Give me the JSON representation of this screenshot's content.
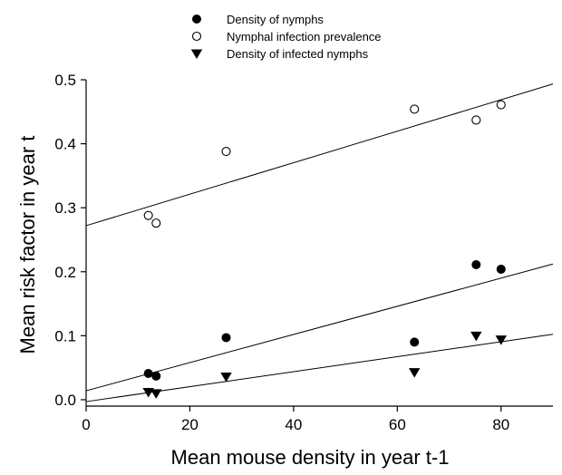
{
  "chart_data": {
    "type": "scatter",
    "title": "",
    "xlabel": "Mean mouse density in year t-1",
    "ylabel": "Mean risk factor in year t",
    "xlim": [
      0,
      90
    ],
    "ylim": [
      -0.01,
      0.5
    ],
    "xticks": [
      0,
      20,
      40,
      60,
      80
    ],
    "yticks": [
      0.0,
      0.1,
      0.2,
      0.3,
      0.4,
      0.5
    ],
    "xtick_labels": [
      "0",
      "20",
      "40",
      "60",
      "80"
    ],
    "ytick_labels": [
      "0.0",
      "0.1",
      "0.2",
      "0.3",
      "0.4",
      "0.5"
    ],
    "grid": false,
    "legend_position": "top-center",
    "series": [
      {
        "name": "Density of nymphs",
        "marker": "filled-circle",
        "points": [
          {
            "x": 12,
            "y": 0.041
          },
          {
            "x": 13.5,
            "y": 0.037
          },
          {
            "x": 27,
            "y": 0.097
          },
          {
            "x": 63.3,
            "y": 0.09
          },
          {
            "x": 75.2,
            "y": 0.211
          },
          {
            "x": 80,
            "y": 0.204
          }
        ],
        "fit": {
          "intercept": 0.014,
          "slope": 0.0022
        }
      },
      {
        "name": "Nymphal infection prevalence",
        "marker": "open-circle",
        "points": [
          {
            "x": 12,
            "y": 0.288
          },
          {
            "x": 13.5,
            "y": 0.276
          },
          {
            "x": 27,
            "y": 0.388
          },
          {
            "x": 63.3,
            "y": 0.454
          },
          {
            "x": 75.2,
            "y": 0.437
          },
          {
            "x": 80,
            "y": 0.461
          }
        ],
        "fit": {
          "intercept": 0.272,
          "slope": 0.00246
        }
      },
      {
        "name": "Density of infected nymphs",
        "marker": "filled-triangle-down",
        "points": [
          {
            "x": 12,
            "y": 0.012
          },
          {
            "x": 13.5,
            "y": 0.01
          },
          {
            "x": 27,
            "y": 0.036
          },
          {
            "x": 63.3,
            "y": 0.043
          },
          {
            "x": 75.2,
            "y": 0.1
          },
          {
            "x": 80,
            "y": 0.094
          }
        ],
        "fit": {
          "intercept": -0.003,
          "slope": 0.00117
        }
      }
    ]
  }
}
